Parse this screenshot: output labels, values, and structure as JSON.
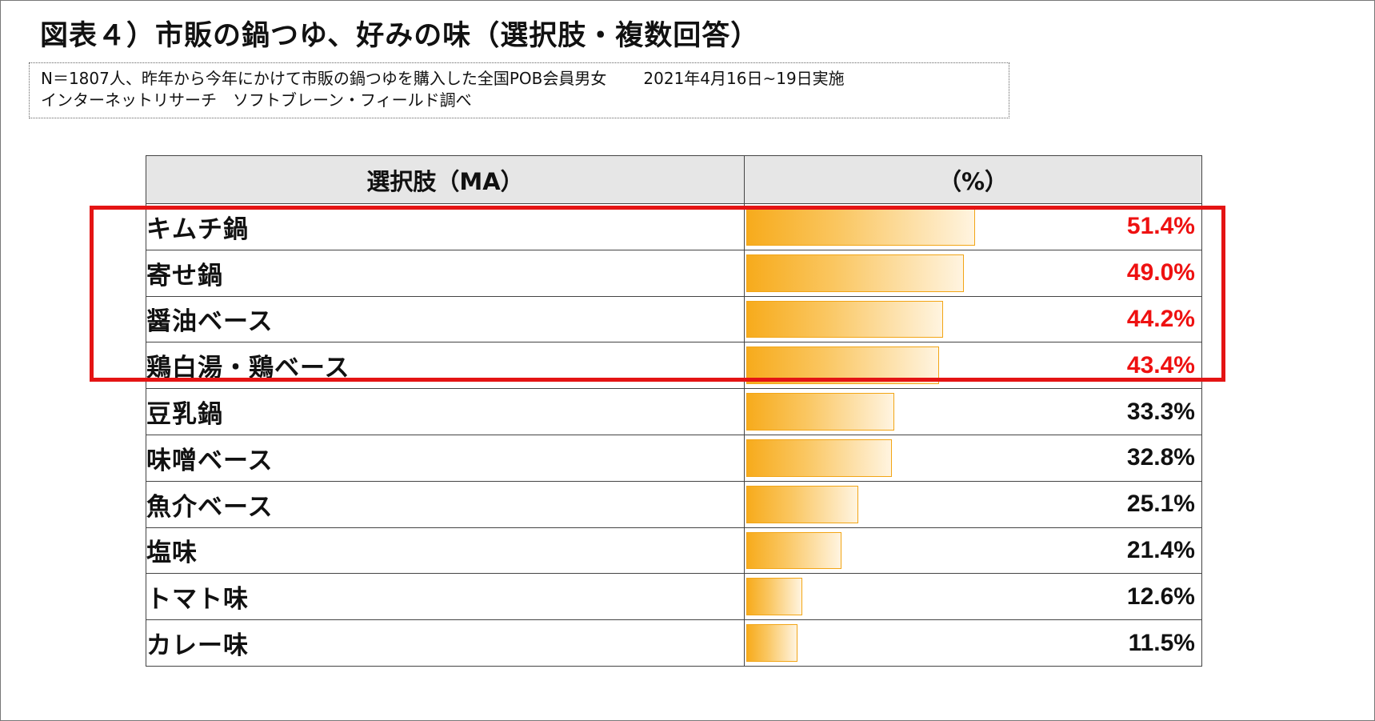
{
  "title": "図表４）市販の鍋つゆ、好みの味（選択肢・複数回答）",
  "note": {
    "line1": "N＝1807人、昨年から今年にかけて市販の鍋つゆを購入した全国POB会員男女",
    "date": "2021年4月16日~19日実施",
    "line2": "インターネットリサーチ　ソフトブレーン・フィールド調べ"
  },
  "table_headers": [
    "選択肢（MA）",
    "（%）"
  ],
  "colors": {
    "highlight": "#e41414",
    "bar": "#f7ab1c",
    "highlight_text": "#ee1111"
  },
  "chart_data": {
    "type": "bar",
    "title": "図表４）市販の鍋つゆ、好みの味（選択肢・複数回答）",
    "categories": [
      "キムチ鍋",
      "寄せ鍋",
      "醤油ベース",
      "鶏白湯・鶏ベース",
      "豆乳鍋",
      "味噌ベース",
      "魚介ベース",
      "塩味",
      "トマト味",
      "カレー味"
    ],
    "values": [
      51.4,
      49.0,
      44.2,
      43.4,
      33.3,
      32.8,
      25.1,
      21.4,
      12.6,
      11.5
    ],
    "value_labels": [
      "51.4%",
      "49.0%",
      "44.2%",
      "43.4%",
      "33.3%",
      "32.8%",
      "25.1%",
      "21.4%",
      "12.6%",
      "11.5%"
    ],
    "highlighted": [
      true,
      true,
      true,
      true,
      false,
      false,
      false,
      false,
      false,
      false
    ],
    "xlim": [
      0,
      100
    ],
    "orientation": "horizontal",
    "xlabel": "",
    "ylabel": ""
  }
}
